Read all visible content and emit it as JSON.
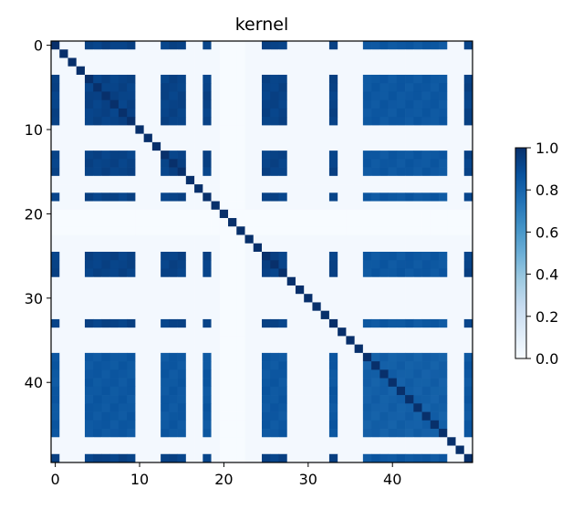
{
  "chart_data": {
    "type": "heatmap",
    "title": "kernel",
    "n": 50,
    "value_range": [
      0,
      1
    ],
    "colormap": "Blues",
    "x_ticks": [
      0,
      10,
      20,
      30,
      40
    ],
    "x_tick_labels": [
      "0",
      "10",
      "20",
      "30",
      "40"
    ],
    "y_ticks": [
      0,
      10,
      20,
      30,
      40
    ],
    "y_tick_labels": [
      "0",
      "10",
      "20",
      "30",
      "40"
    ],
    "colorbar": {
      "ticks": [
        0.0,
        0.2,
        0.4,
        0.6,
        0.8,
        1.0
      ],
      "tick_labels": [
        "0.0",
        "0.2",
        "0.4",
        "0.6",
        "0.8",
        "1.0"
      ]
    },
    "low_indices": [
      1,
      2,
      3,
      10,
      11,
      12,
      16,
      17,
      19,
      20,
      21,
      22,
      23,
      24,
      28,
      29,
      30,
      31,
      32,
      34,
      35,
      36,
      47,
      48
    ],
    "zero_indices": [
      20,
      21,
      22
    ],
    "elevated_indices": [
      37,
      38,
      39,
      40,
      41,
      42,
      43,
      44,
      45,
      46
    ],
    "values": {
      "diagonal": 1.0,
      "low_pair": 0.02,
      "zero_pair": 0.0,
      "high_pair": 0.93,
      "elevated_pair": 0.85
    }
  }
}
